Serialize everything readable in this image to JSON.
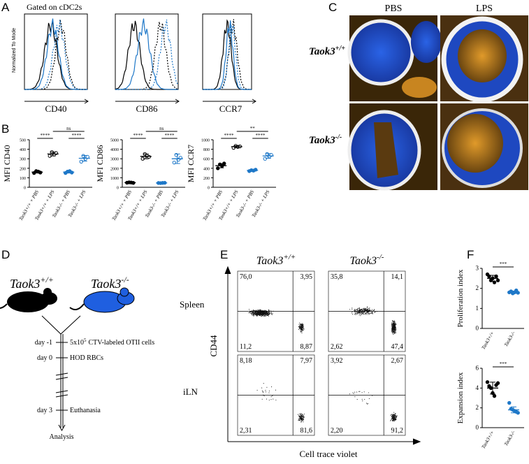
{
  "panel_labels": [
    "A",
    "B",
    "C",
    "D",
    "E",
    "F"
  ],
  "panel_a": {
    "gate": "Gated on cDC2s",
    "y_label": "Normalized To Mode",
    "markers": [
      "CD40",
      "CD86",
      "CCR7"
    ]
  },
  "panel_c": {
    "columns": [
      "PBS",
      "LPS"
    ],
    "rows": [
      {
        "gene": "Taok3",
        "genotype": "+/+"
      },
      {
        "gene": "Taok3",
        "genotype": "-/-"
      }
    ]
  },
  "panel_d": {
    "mice": [
      {
        "gene": "Taok3",
        "genotype": "+/+"
      },
      {
        "gene": "Taok3",
        "genotype": "-/-"
      }
    ],
    "timeline": [
      {
        "day": "day -1",
        "event": "5x10",
        "event_sup": "5",
        "event_rest": "CTV-labeled OTII cells"
      },
      {
        "day": "day 0",
        "event": "HOD RBCs"
      },
      {
        "day": "day 3",
        "event": "Euthanasia"
      }
    ],
    "end": "Analysis"
  },
  "panel_e": {
    "columns": [
      {
        "gene": "Taok3",
        "genotype": "+/+"
      },
      {
        "gene": "Taok3",
        "genotype": "-/-"
      }
    ],
    "rows": [
      "Spleen",
      "iLN"
    ],
    "quadrants": [
      [
        [
          "76,0",
          "3,95",
          "11,2",
          "8,87"
        ],
        [
          "35,8",
          "14,1",
          "2,62",
          "47,4"
        ]
      ],
      [
        [
          "8,18",
          "7,97",
          "2,31",
          "81,6"
        ],
        [
          "3,92",
          "2,67",
          "2,20",
          "91,2"
        ]
      ]
    ],
    "y_label": "CD44",
    "x_label": "Cell trace violet"
  },
  "chart_data": [
    {
      "type": "dot",
      "y_label": "MFI CD40",
      "categories": [
        "Taok3+/+ + PBS",
        "Taok3+/+ + LPS",
        "Taok3-/- + PBS",
        "Taok3-/- + LPS"
      ],
      "points": [
        [
          150,
          170,
          165,
          155
        ],
        [
          330,
          370,
          345,
          360
        ],
        [
          150,
          165,
          170,
          155
        ],
        [
          270,
          330,
          300,
          320
        ]
      ],
      "means": [
        160,
        350,
        160,
        305
      ],
      "errors": [
        10,
        20,
        10,
        30
      ],
      "colors": [
        "#000000",
        "#000000",
        "#1f78c8",
        "#1f78c8"
      ],
      "filled": [
        true,
        false,
        true,
        false
      ],
      "ylim": [
        0,
        500
      ],
      "yticks": [
        0,
        100,
        200,
        300,
        400,
        500
      ],
      "comparisons": [
        {
          "between": [
            0,
            1
          ],
          "label": "****"
        },
        {
          "between": [
            2,
            3
          ],
          "label": "****"
        },
        {
          "between": [
            1,
            3
          ],
          "label": "ns"
        }
      ]
    },
    {
      "type": "dot",
      "y_label": "MFI CD86",
      "categories": [
        "Taok3+/+ + PBS",
        "Taok3+/+ + LPS",
        "Taok3-/- + PBS",
        "Taok3-/- + LPS"
      ],
      "points": [
        [
          480,
          520,
          500,
          460
        ],
        [
          3000,
          3500,
          3300,
          3200
        ],
        [
          450,
          440,
          460,
          470
        ],
        [
          2600,
          3400,
          2900,
          3100
        ]
      ],
      "means": [
        490,
        3250,
        455,
        3000
      ],
      "errors": [
        30,
        250,
        15,
        500
      ],
      "colors": [
        "#000000",
        "#000000",
        "#1f78c8",
        "#1f78c8"
      ],
      "filled": [
        true,
        false,
        true,
        false
      ],
      "ylim": [
        0,
        5000
      ],
      "yticks": [
        0,
        1000,
        2000,
        3000,
        4000,
        5000
      ],
      "comparisons": [
        {
          "between": [
            0,
            1
          ],
          "label": "****"
        },
        {
          "between": [
            2,
            3
          ],
          "label": "****"
        },
        {
          "between": [
            1,
            3
          ],
          "label": "ns"
        }
      ]
    },
    {
      "type": "dot",
      "y_label": "MFI CCR7",
      "categories": [
        "Taok3+/+ + PBS",
        "Taok3+/+ + LPS",
        "Taok3-/- + PBS",
        "Taok3-/- + LPS"
      ],
      "points": [
        [
          400,
          480,
          450,
          500
        ],
        [
          830,
          870,
          850,
          860
        ],
        [
          340,
          360,
          350,
          370
        ],
        [
          600,
          700,
          650,
          680
        ]
      ],
      "means": [
        455,
        855,
        355,
        660
      ],
      "errors": [
        45,
        20,
        15,
        50
      ],
      "colors": [
        "#000000",
        "#000000",
        "#1f78c8",
        "#1f78c8"
      ],
      "filled": [
        true,
        false,
        true,
        false
      ],
      "ylim": [
        0,
        1000
      ],
      "yticks": [
        0,
        200,
        400,
        600,
        800,
        1000
      ],
      "comparisons": [
        {
          "between": [
            0,
            1
          ],
          "label": "****"
        },
        {
          "between": [
            2,
            3
          ],
          "label": "****"
        },
        {
          "between": [
            1,
            3
          ],
          "label": "**"
        }
      ]
    },
    {
      "type": "dot",
      "y_label": "Proliferation index",
      "categories": [
        "Taok3+/+",
        "Taok3-/-"
      ],
      "points": [
        [
          2.7,
          2.6,
          2.4,
          2.5,
          2.3,
          2.6,
          2.4
        ],
        [
          1.8,
          1.85,
          1.75,
          1.8,
          1.9,
          1.78
        ]
      ],
      "means": [
        2.5,
        1.81
      ],
      "errors": [
        0.15,
        0.06
      ],
      "colors": [
        "#000000",
        "#1f78c8"
      ],
      "filled": [
        true,
        true
      ],
      "ylim": [
        0,
        3
      ],
      "yticks": [
        0,
        1,
        2,
        3
      ],
      "comparisons": [
        {
          "between": [
            0,
            1
          ],
          "label": "***"
        }
      ]
    },
    {
      "type": "dot",
      "y_label": "Expansion index",
      "categories": [
        "Taok3+/+",
        "Taok3-/-"
      ],
      "points": [
        [
          4.6,
          4.2,
          4.0,
          3.5,
          3.2,
          4.3,
          4.5
        ],
        [
          2.5,
          1.9,
          1.8,
          1.7,
          1.6,
          1.5
        ]
      ],
      "means": [
        4.0,
        1.8
      ],
      "errors": [
        0.6,
        0.3
      ],
      "colors": [
        "#000000",
        "#1f78c8"
      ],
      "filled": [
        true,
        true
      ],
      "ylim": [
        0,
        6
      ],
      "yticks": [
        0,
        2,
        4,
        6
      ],
      "comparisons": [
        {
          "between": [
            0,
            1
          ],
          "label": "***"
        }
      ]
    }
  ]
}
